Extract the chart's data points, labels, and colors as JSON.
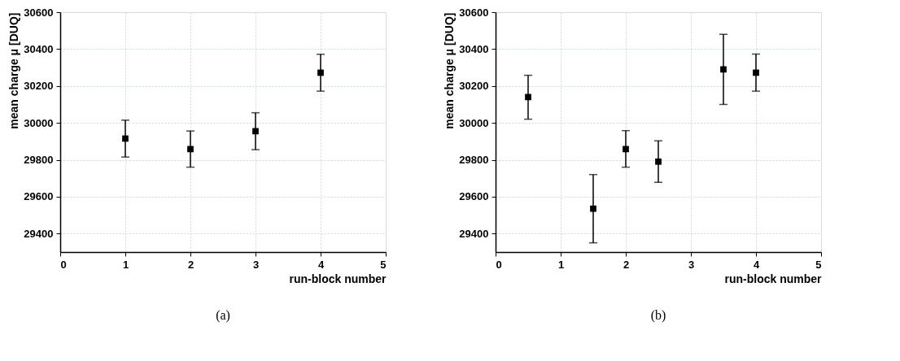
{
  "chart_data": [
    {
      "type": "scatter",
      "xlabel": "run-block number",
      "ylabel": "mean charge μ [DUQ]",
      "annotations": [
        "(a)"
      ],
      "x": [
        1,
        2,
        3,
        4
      ],
      "series": [
        {
          "color": "#000000",
          "values": [
            29915,
            29858,
            29955,
            30272
          ],
          "errors": [
            100,
            98,
            100,
            100
          ]
        }
      ],
      "xlim": [
        0,
        5
      ],
      "xticks": [
        0,
        1,
        2,
        3,
        4,
        5
      ],
      "ylim": [
        29300,
        30600
      ],
      "yticks": [
        29400,
        29600,
        29800,
        30000,
        30200,
        30400,
        30600
      ],
      "grid": true,
      "marker": "square"
    },
    {
      "type": "scatter",
      "xlabel": "run-block number",
      "ylabel": "mean charge μ [DUQ]",
      "annotations": [
        "(b)"
      ],
      "x": [
        0.5,
        1.5,
        2,
        2.5,
        3.5,
        4
      ],
      "series": [
        {
          "color": "#000000",
          "values": [
            30140,
            29535,
            29858,
            29790,
            30290,
            30272
          ],
          "errors": [
            [
              30020,
              30258
            ],
            [
              29350,
              29720
            ],
            [
              29760,
              29958
            ],
            [
              29678,
              29903
            ],
            [
              30100,
              30480
            ],
            [
              30172,
              30373
            ]
          ]
        }
      ],
      "xlim": [
        0,
        5
      ],
      "xticks": [
        0,
        1,
        2,
        3,
        4,
        5
      ],
      "ylim": [
        29300,
        30600
      ],
      "yticks": [
        29400,
        29600,
        29800,
        30000,
        30200,
        30400,
        30600
      ],
      "grid": true,
      "marker": "square"
    }
  ]
}
